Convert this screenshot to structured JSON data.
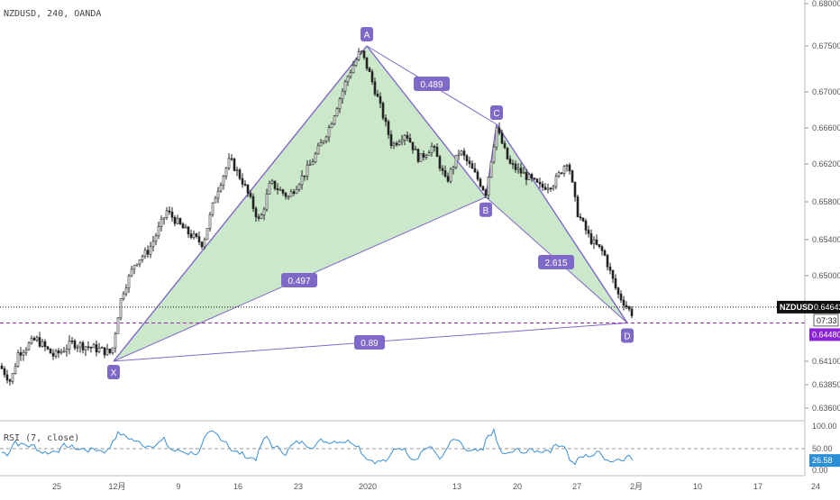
{
  "header": {
    "symbol_line": "NZDUSD, 240, OANDA"
  },
  "colors": {
    "pattern_fill": "#c9e7c7",
    "pattern_stroke": "#7e68c8",
    "point_label_bg": "#7e68c8",
    "ratio_label_bg": "#7e68c8",
    "candle_color": "#222222",
    "rsi_line": "#3a8fd6",
    "price_badge_bg": "#111111",
    "target_badge_bg": "#8a22d6",
    "rsi_badge_bg": "#2b8fd6",
    "current_price_line": "#111111",
    "target_line": "#9c27b0"
  },
  "price_axis": {
    "ticks": [
      "0.68000",
      "0.67500",
      "0.67000",
      "0.66600",
      "0.66200",
      "0.65800",
      "0.65400",
      "0.65000",
      "0.64600",
      "0.64100",
      "0.63850",
      "0.63600"
    ],
    "current_symbol": "NZDUSD",
    "current_price": "0.64642",
    "countdown": "07:33",
    "target_price": "0.64480"
  },
  "rsi": {
    "label": "RSI (7, close)",
    "ticks": [
      "100.00",
      "50.00",
      "0.00"
    ],
    "current_value": "26.58"
  },
  "time_axis": {
    "labels": [
      "25",
      "12月",
      "9",
      "16",
      "23",
      "2020",
      "13",
      "20",
      "27",
      "2月",
      "10",
      "17",
      "24"
    ]
  },
  "chart_data": {
    "type": "line",
    "title": "NZDUSD, 240, OANDA",
    "xlabel": "",
    "ylabel": "",
    "ylim": [
      0.634,
      0.68
    ],
    "series": [
      {
        "name": "XABCD",
        "x": [
          "X",
          "A",
          "B",
          "C",
          "D"
        ],
        "values": [
          0.641,
          0.675,
          0.6585,
          0.6664,
          0.6448
        ]
      }
    ],
    "pattern_points": [
      {
        "label": "X",
        "price": 0.641
      },
      {
        "label": "A",
        "price": 0.675
      },
      {
        "label": "B",
        "price": 0.6585
      },
      {
        "label": "C",
        "price": 0.6664
      },
      {
        "label": "D",
        "price": 0.6448
      }
    ],
    "ratios": [
      {
        "leg": "XB",
        "value": "0.497"
      },
      {
        "leg": "AC",
        "value": "0.489"
      },
      {
        "leg": "BD",
        "value": "2.615"
      },
      {
        "leg": "XD",
        "value": "0.89"
      }
    ],
    "rsi_series": {
      "name": "RSI (7, close)",
      "ylim": [
        0,
        100
      ],
      "last": 26.58
    }
  }
}
